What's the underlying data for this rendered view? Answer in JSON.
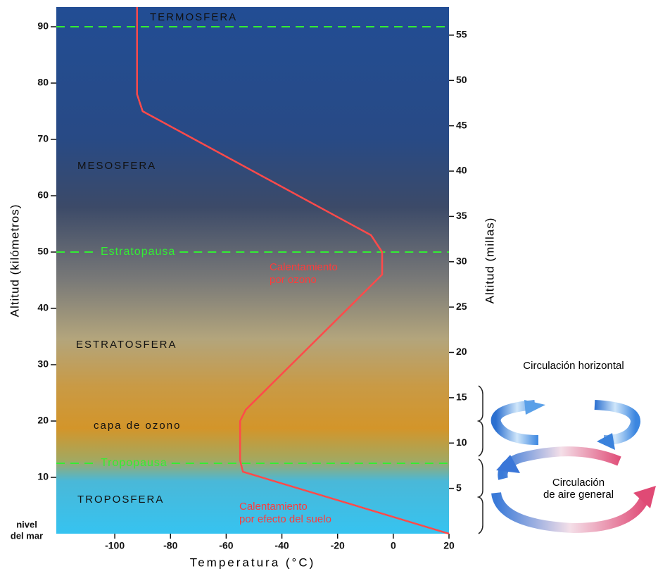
{
  "chart_data": {
    "type": "line",
    "x_label": "Temperatura (°C)",
    "y_label": "Altitud (kilómetros)",
    "y2_label": "Altitud (millas)",
    "xlim": [
      -121,
      20
    ],
    "ylim": [
      0,
      93.5
    ],
    "y2lim": [
      0,
      58.1
    ],
    "xticks": [
      -100,
      -80,
      -60,
      -40,
      -20,
      0,
      20
    ],
    "yticks": [
      10,
      20,
      30,
      40,
      50,
      60,
      70,
      80,
      90
    ],
    "y2ticks": [
      5,
      10,
      15,
      20,
      25,
      30,
      35,
      40,
      45,
      50,
      55
    ],
    "sea_level_label": [
      "nivel",
      "del mar"
    ],
    "series": [
      {
        "color": "#ff4a4a",
        "x": [
          20,
          -54,
          -55,
          -55,
          -53,
          -4,
          -4,
          -8,
          -90,
          -92,
          -92
        ],
        "values": [
          0,
          11,
          13,
          20,
          22,
          46,
          50,
          53,
          75,
          78,
          93.5
        ]
      }
    ],
    "boundaries": [
      {
        "altitude": 90
      },
      {
        "label": "Estratopausa",
        "altitude": 50
      },
      {
        "label": "Tropopausa",
        "altitude": 12.5
      }
    ],
    "boundary_color": "#33ee33",
    "layers": [
      "TERMOSFERA",
      "MESOSFERA",
      "ESTRATOSFERA",
      "capa de ozono",
      "TROPOSFERA"
    ],
    "annotations": [
      [
        "Calentamiento",
        "por ozono"
      ],
      [
        "Calentamiento",
        "por efecto del suelo"
      ]
    ],
    "circulation": {
      "horizontal": "Circulación horizontal",
      "general": [
        "Circulación",
        "de aire general"
      ]
    }
  }
}
